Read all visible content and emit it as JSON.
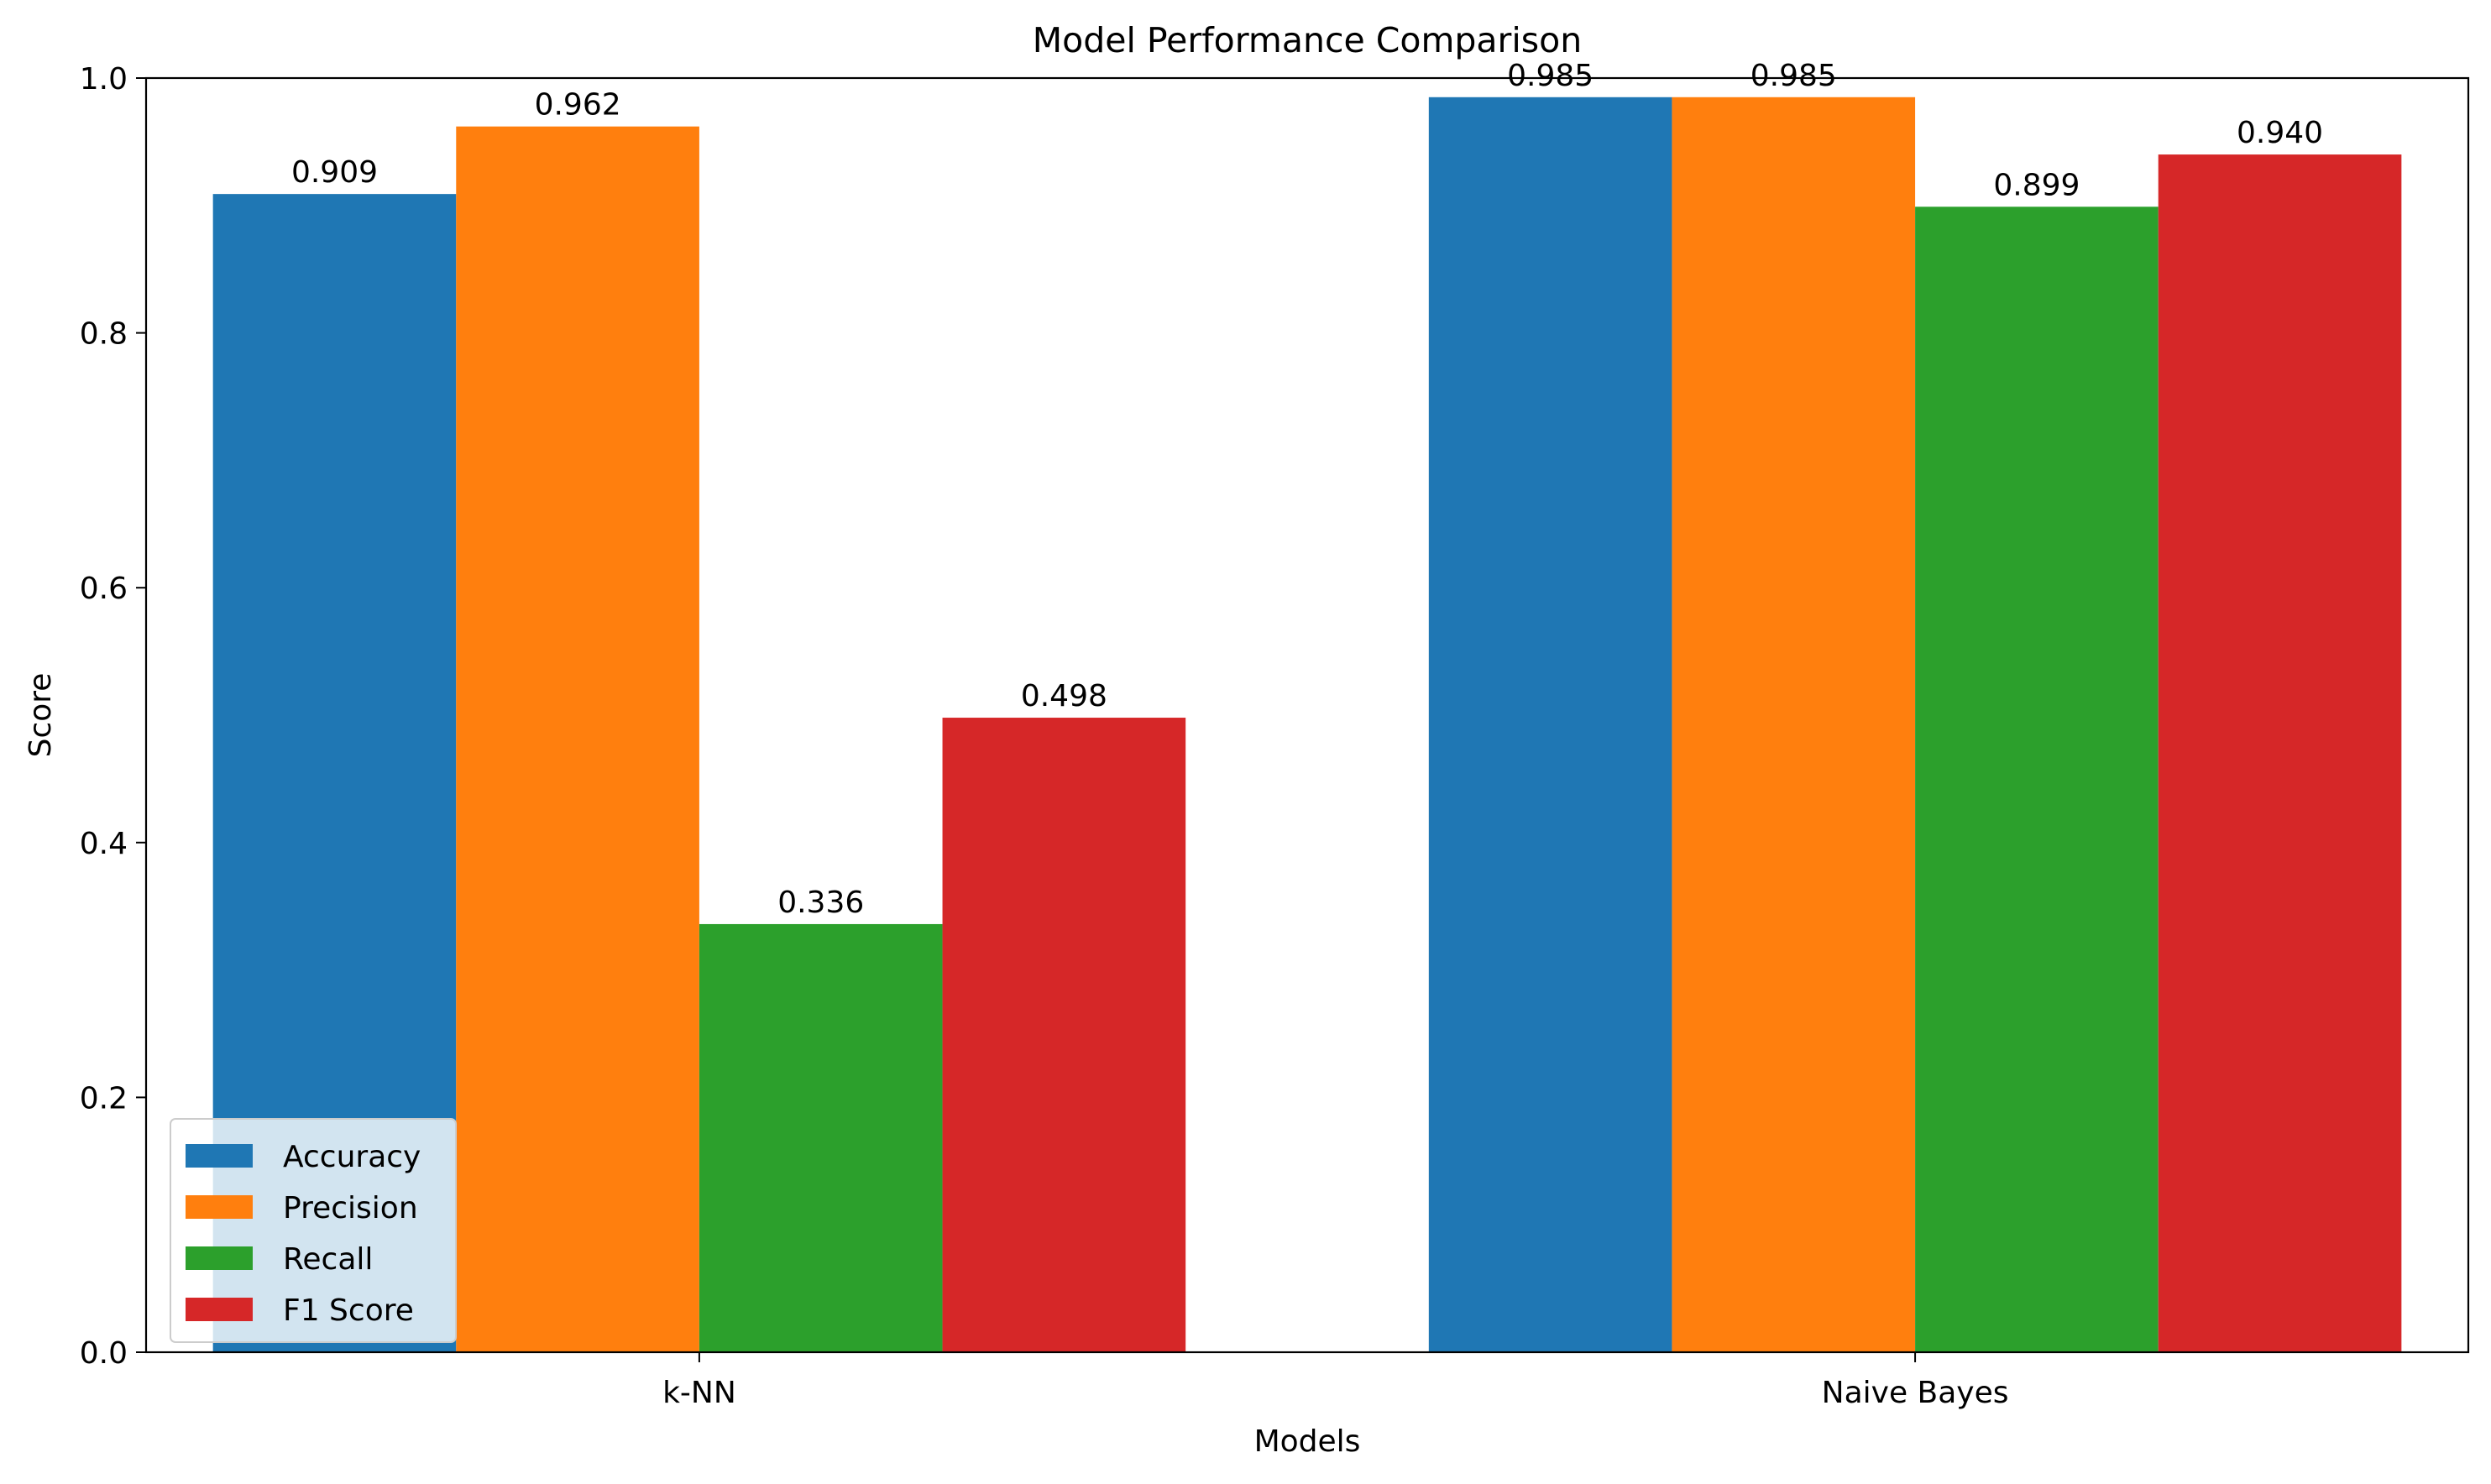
{
  "chart_data": {
    "type": "bar",
    "title": "Model Performance Comparison",
    "xlabel": "Models",
    "ylabel": "Score",
    "categories": [
      "k-NN",
      "Naive Bayes"
    ],
    "series": [
      {
        "name": "Accuracy",
        "color": "#1f77b4",
        "values": [
          0.909,
          0.985
        ],
        "labels": [
          "0.909",
          "0.985"
        ]
      },
      {
        "name": "Precision",
        "color": "#ff7f0e",
        "values": [
          0.962,
          0.985
        ],
        "labels": [
          "0.962",
          "0.985"
        ]
      },
      {
        "name": "Recall",
        "color": "#2ca02c",
        "values": [
          0.336,
          0.899
        ],
        "labels": [
          "0.336",
          "0.899"
        ]
      },
      {
        "name": "F1 Score",
        "color": "#d62728",
        "values": [
          0.498,
          0.94
        ],
        "labels": [
          "0.498",
          "0.940"
        ]
      }
    ],
    "ylim": [
      0,
      1.0
    ],
    "yticks": [
      0.0,
      0.2,
      0.4,
      0.6,
      0.8,
      1.0
    ],
    "ytick_labels": [
      "0.0",
      "0.2",
      "0.4",
      "0.6",
      "0.8",
      "1.0"
    ],
    "grid": false,
    "legend_position": "lower-left"
  }
}
